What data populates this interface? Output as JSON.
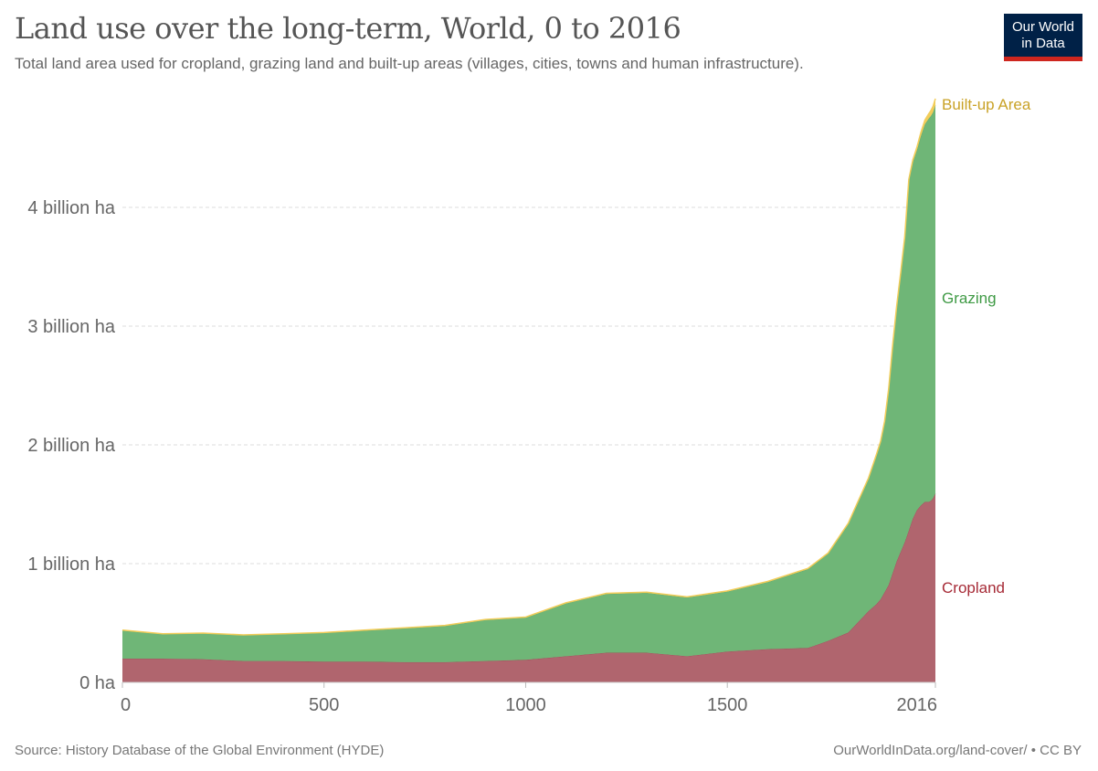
{
  "header": {
    "title": "Land use over the long-term, World, 0 to 2016",
    "subtitle": "Total land area used for cropland, grazing land and built-up areas (villages, cities, towns and human infrastructure).",
    "logo_line1": "Our World",
    "logo_line2": "in Data"
  },
  "footer": {
    "source": "Source: History Database of the Global Environment (HYDE)",
    "license": "OurWorldInData.org/land-cover/ • CC BY"
  },
  "colors": {
    "cropland": "#b0656e",
    "cropland_line": "#8e3a45",
    "cropland_label": "#a62a36",
    "grazing": "#6fb677",
    "grazing_line": "#5a9a60",
    "grazing_label": "#3f9a45",
    "builtup": "#f2cd5a",
    "builtup_label": "#c9a227",
    "grid": "#dddddd",
    "axis_text": "#666666",
    "logo_bg": "#002147",
    "logo_accent": "#ce261e"
  },
  "chart_data": {
    "type": "area",
    "stacked": true,
    "title": "Land use over the long-term, World, 0 to 2016",
    "xlabel": "",
    "ylabel": "",
    "xlim": [
      0,
      2016
    ],
    "ylim": [
      0,
      5
    ],
    "y_unit": "billion ha",
    "grid": true,
    "x_ticks": [
      0,
      500,
      1000,
      1500,
      2016
    ],
    "x_tick_labels": [
      "0",
      "500",
      "1000",
      "1500",
      "2016"
    ],
    "y_ticks": [
      0,
      1,
      2,
      3,
      4
    ],
    "y_tick_labels": [
      "0 ha",
      "1 billion ha",
      "2 billion ha",
      "3 billion ha",
      "4 billion ha"
    ],
    "legend_placement": "right (inline labels)",
    "x": [
      0,
      100,
      200,
      300,
      400,
      500,
      600,
      700,
      800,
      900,
      1000,
      1100,
      1200,
      1300,
      1400,
      1500,
      1600,
      1700,
      1750,
      1800,
      1850,
      1870,
      1880,
      1890,
      1900,
      1910,
      1920,
      1930,
      1940,
      1950,
      1960,
      1970,
      1980,
      1990,
      2000,
      2005,
      2010,
      2016
    ],
    "series": [
      {
        "name": "Cropland",
        "values": [
          0.2,
          0.2,
          0.195,
          0.18,
          0.18,
          0.175,
          0.175,
          0.17,
          0.17,
          0.18,
          0.19,
          0.22,
          0.25,
          0.25,
          0.22,
          0.26,
          0.28,
          0.29,
          0.35,
          0.42,
          0.6,
          0.66,
          0.7,
          0.76,
          0.82,
          0.92,
          1.02,
          1.1,
          1.18,
          1.28,
          1.38,
          1.45,
          1.49,
          1.52,
          1.52,
          1.53,
          1.55,
          1.59
        ]
      },
      {
        "name": "Grazing",
        "values": [
          0.237,
          0.207,
          0.217,
          0.217,
          0.227,
          0.242,
          0.262,
          0.286,
          0.306,
          0.346,
          0.356,
          0.445,
          0.495,
          0.505,
          0.495,
          0.505,
          0.564,
          0.664,
          0.734,
          0.914,
          1.114,
          1.254,
          1.324,
          1.434,
          1.644,
          1.914,
          2.144,
          2.344,
          2.564,
          2.944,
          3.0,
          3.03,
          3.11,
          3.18,
          3.23,
          3.24,
          3.25,
          3.27
        ]
      },
      {
        "name": "Built-up Area",
        "values": [
          0.003,
          0.003,
          0.003,
          0.003,
          0.003,
          0.003,
          0.003,
          0.004,
          0.004,
          0.004,
          0.004,
          0.005,
          0.005,
          0.005,
          0.005,
          0.005,
          0.006,
          0.006,
          0.006,
          0.006,
          0.006,
          0.006,
          0.006,
          0.006,
          0.006,
          0.006,
          0.006,
          0.006,
          0.006,
          0.012,
          0.02,
          0.025,
          0.03,
          0.035,
          0.04,
          0.045,
          0.05,
          0.055
        ]
      }
    ],
    "labels": [
      "Built-up Area",
      "Grazing",
      "Cropland"
    ]
  }
}
